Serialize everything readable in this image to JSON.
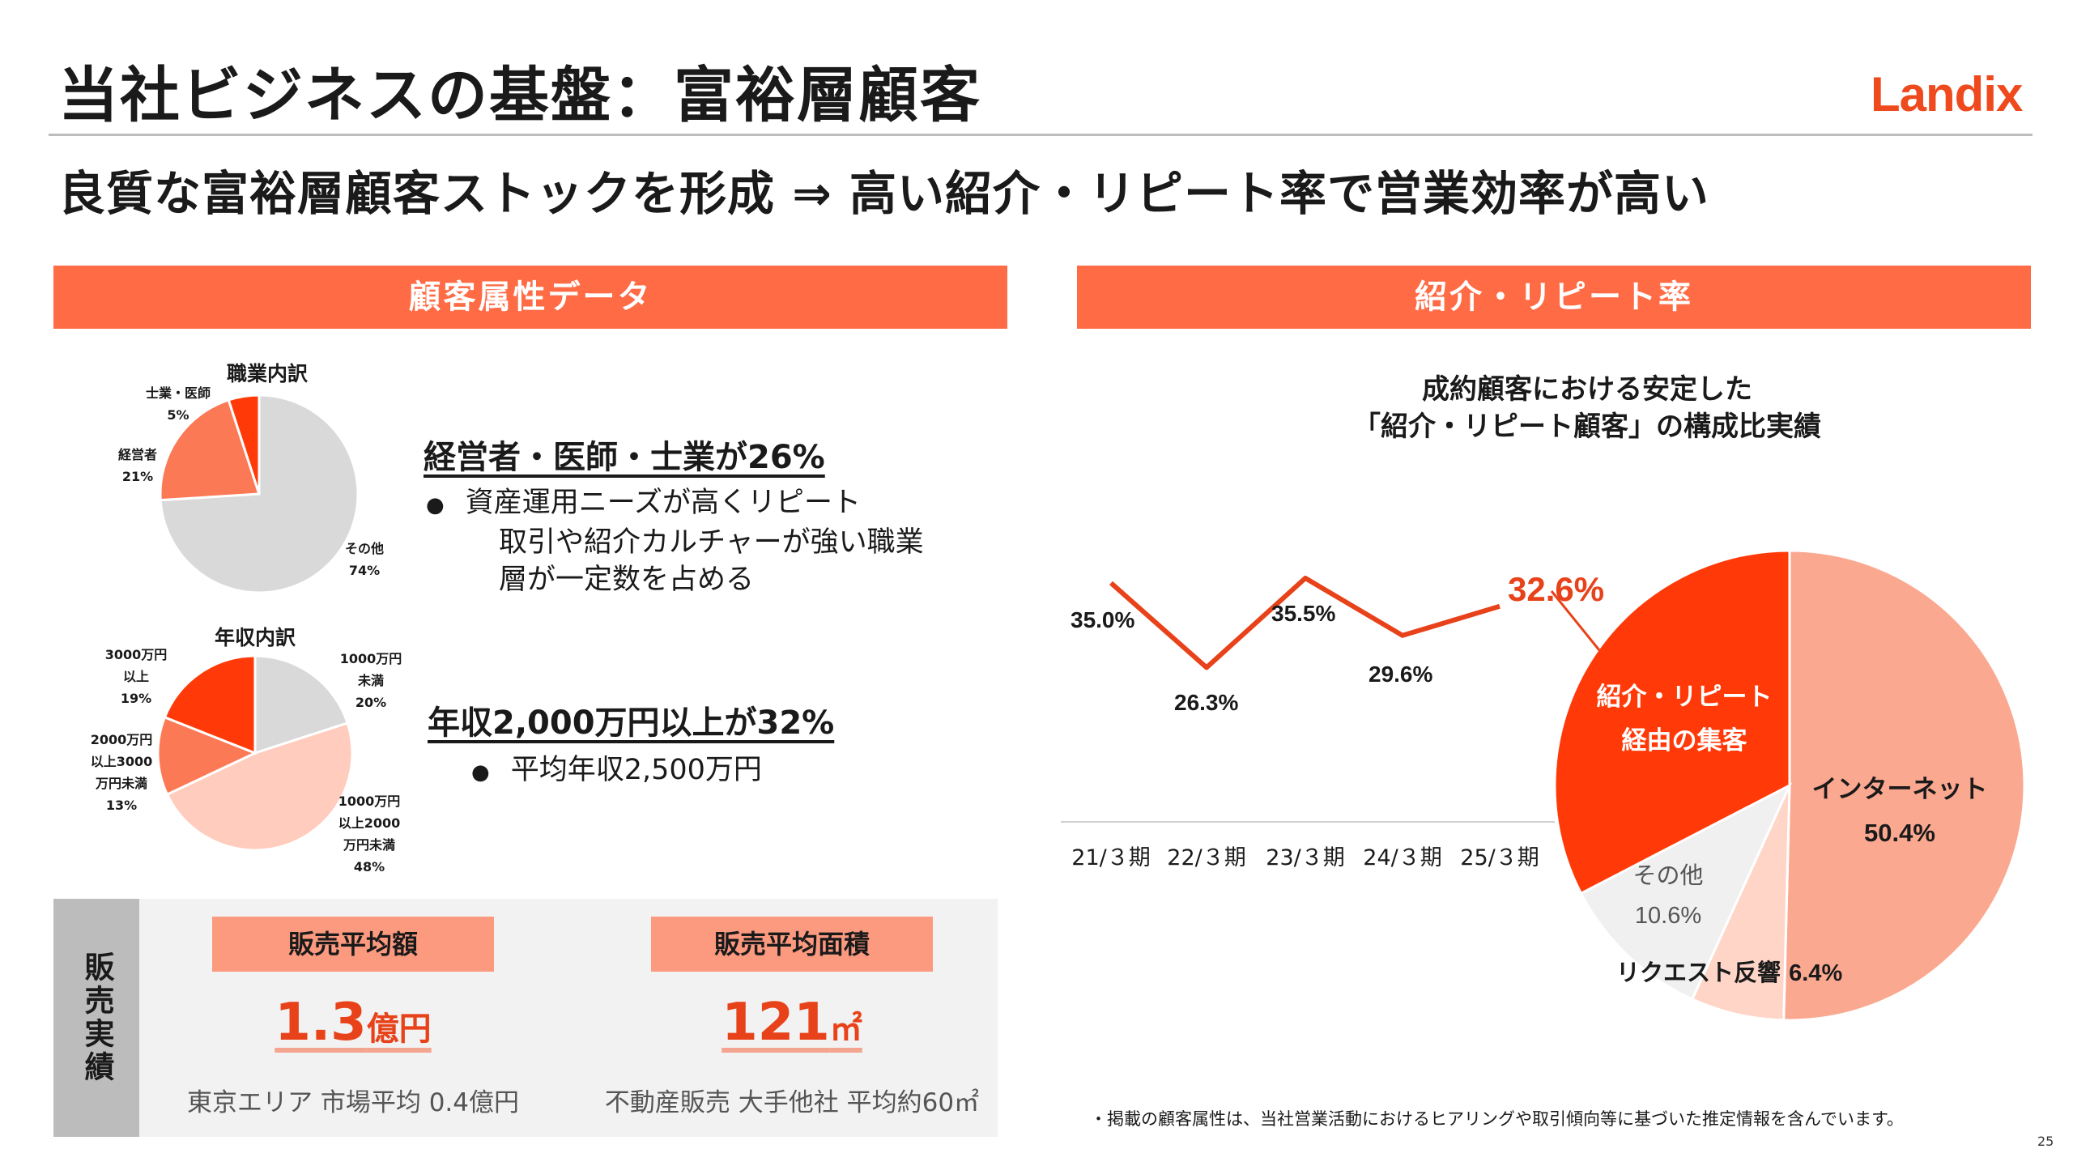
{
  "header": {
    "title": "当社ビジネスの基盤：富裕層顧客",
    "logo_text": "Landix",
    "subtitle": "良質な富裕層顧客ストックを形成 ⇒ 高い紹介・リピート率で営業効率が高い"
  },
  "left_section": {
    "bar_label": "顧客属性データ",
    "occupation": {
      "title": "職業内訳",
      "slices": [
        {
          "label": "その他",
          "pct_text": "74%",
          "value": 74,
          "color": "#d9d9d9"
        },
        {
          "label": "経営者",
          "pct_text": "21%",
          "value": 21,
          "color": "#fb7a55"
        },
        {
          "label": "士業・医師",
          "pct_text": "5%",
          "value": 5,
          "color": "#ff3a08"
        }
      ],
      "headline": "経営者・医師・士業が26%",
      "bullets": [
        "資産運用ニーズが高くリピート",
        "取引や紹介カルチャーが強い職業",
        "層が一定数を占める"
      ]
    },
    "income": {
      "title": "年収内訳",
      "slices": [
        {
          "label_lines": [
            "1000万円",
            "未満",
            "20%"
          ],
          "value": 20,
          "color": "#d9d9d9"
        },
        {
          "label_lines": [
            "1000万円",
            "以上2000",
            "万円未満",
            "48%"
          ],
          "value": 48,
          "color": "#ffccbd"
        },
        {
          "label_lines": [
            "2000万円",
            "以上3000",
            "万円未満",
            "13%"
          ],
          "value": 13,
          "color": "#fb7a55"
        },
        {
          "label_lines": [
            "3000万円",
            "以上",
            "19%"
          ],
          "value": 19,
          "color": "#ff3a08"
        }
      ],
      "headline": "年収2,000万円以上が32%",
      "bullets": [
        "平均年収2,500万円"
      ]
    },
    "sales": {
      "side_label": "販売実績",
      "price": {
        "tag": "販売平均額",
        "value": "1.3",
        "unit": "億円",
        "note": "東京エリア 市場平均 0.4億円"
      },
      "area": {
        "tag": "販売平均面積",
        "value": "121",
        "unit": "㎡",
        "note": "不動産販売 大手他社 平均約60㎡"
      }
    }
  },
  "right_section": {
    "bar_label": "紹介・リピート率",
    "chart_title_lines": [
      "成約顧客における安定した",
      "「紹介・リピート顧客」の構成比実績"
    ],
    "chart_data": [
      {
        "type": "line",
        "categories": [
          "21/３期",
          "22/３期",
          "23/３期",
          "24/３期",
          "25/３期"
        ],
        "values": [
          35.0,
          26.3,
          35.5,
          29.6,
          32.6
        ],
        "value_labels": [
          "35.0%",
          "26.3%",
          "35.5%",
          "29.6%",
          "32.6%"
        ],
        "color": "#e8421a",
        "title": "",
        "xlabel": "",
        "ylabel": ""
      },
      {
        "type": "pie",
        "slices": [
          {
            "label": "インターネット",
            "value": 50.4,
            "value_text": "50.4%",
            "color": "#fba890"
          },
          {
            "label": "リクエスト反響",
            "value": 6.4,
            "value_text": "6.4%",
            "color": "#ffd5c8"
          },
          {
            "label": "その他",
            "value": 10.6,
            "value_text": "10.6%",
            "color": "#f0f0f0"
          },
          {
            "label_lines": [
              "紹介・リピート",
              "経由の集客"
            ],
            "value": 32.6,
            "color": "#ff3a08"
          }
        ]
      }
    ]
  },
  "footer": {
    "footnote": "・掲載の顧客属性は、当社営業活動におけるヒアリングや取引傾向等に基づいた推定情報を含んでいます。",
    "page_number": "25"
  }
}
